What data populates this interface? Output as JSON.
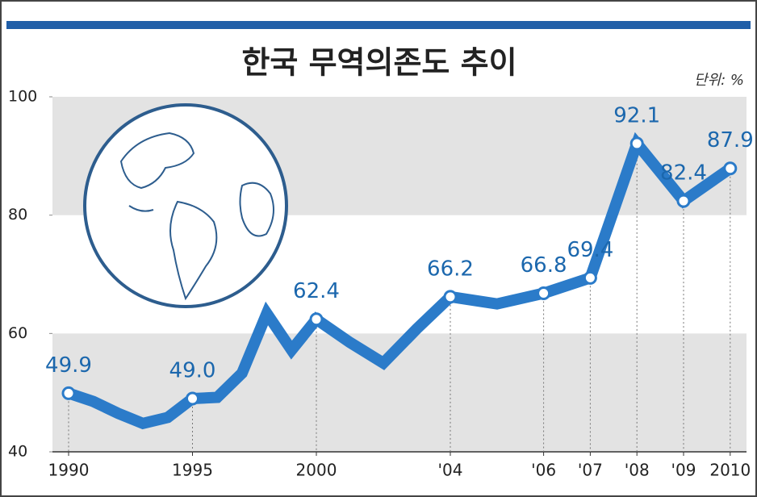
{
  "chart_data": {
    "type": "line",
    "title": "한국 무역의존도 추이",
    "unit_label": "단위: %",
    "categories": [
      "1990",
      null,
      null,
      null,
      null,
      "1995",
      null,
      null,
      null,
      null,
      "2000",
      null,
      null,
      null,
      "'04",
      null,
      "'06",
      "'07",
      "'08",
      "'09",
      "2010"
    ],
    "series": [
      {
        "name": "무역의존도",
        "color": "#2b7bc9",
        "values": [
          49.9,
          48.5,
          46.5,
          44.8,
          45.8,
          49.0,
          49.2,
          53.3,
          63.4,
          57.2,
          62.4,
          58.5,
          55.0,
          60.8,
          66.2,
          65.0,
          66.8,
          69.4,
          92.1,
          82.4,
          87.9
        ],
        "value_labels": [
          "49.9",
          null,
          null,
          null,
          null,
          "49.0",
          null,
          null,
          null,
          null,
          "62.4",
          null,
          null,
          null,
          "66.2",
          null,
          "66.8",
          "69.4",
          "92.1",
          "82.4",
          "87.9"
        ]
      }
    ],
    "ylim": [
      40,
      100
    ],
    "yticks": [
      40,
      60,
      80,
      100
    ]
  }
}
